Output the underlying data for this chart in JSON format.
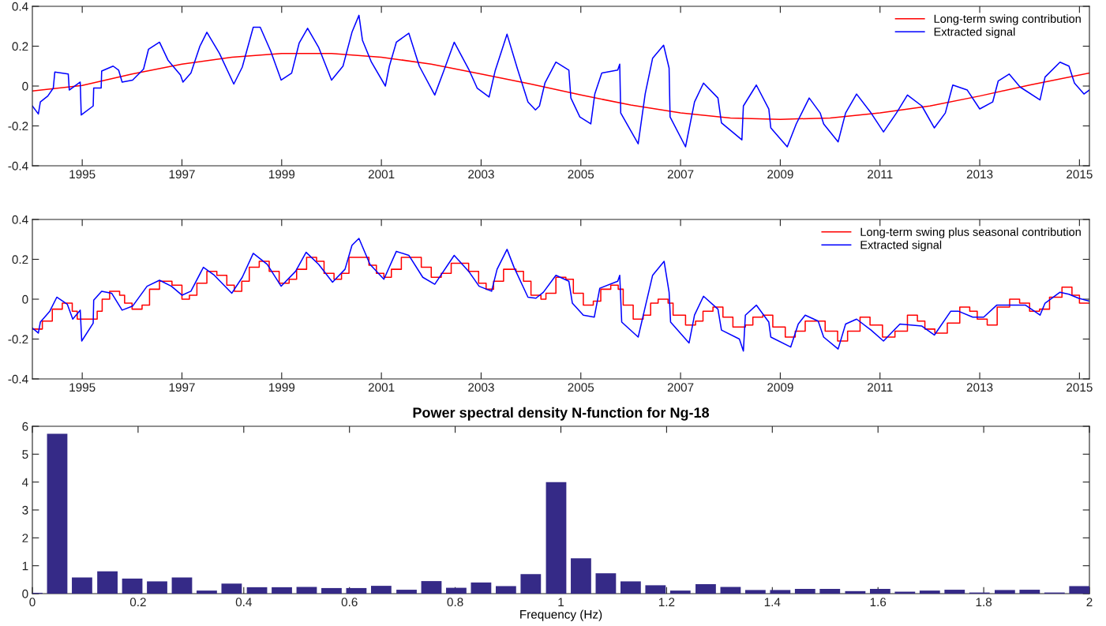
{
  "chart_data": [
    {
      "type": "line",
      "legend": "top right",
      "xlim": [
        1994.0,
        2015.2
      ],
      "ylim": [
        -0.4,
        0.4
      ],
      "xticks": [
        1995,
        1997,
        1999,
        2001,
        2003,
        2005,
        2007,
        2009,
        2011,
        2013,
        2015
      ],
      "yticks": [
        -0.4,
        -0.2,
        0,
        0.2,
        0.4
      ],
      "series": [
        {
          "name": "Long-term swing contribution",
          "color": "#ff0000",
          "x": [
            1994.0,
            1995.0,
            1996.0,
            1997.0,
            1998.0,
            1999.0,
            2000.0,
            2001.0,
            2002.0,
            2003.0,
            2004.0,
            2005.0,
            2006.0,
            2007.0,
            2008.0,
            2009.0,
            2010.0,
            2011.0,
            2012.0,
            2013.0,
            2014.0,
            2015.2
          ],
          "values": [
            -0.025,
            0.003,
            0.06,
            0.11,
            0.145,
            0.163,
            0.163,
            0.145,
            0.11,
            0.06,
            0.01,
            -0.045,
            -0.095,
            -0.135,
            -0.16,
            -0.167,
            -0.16,
            -0.135,
            -0.1,
            -0.05,
            0.005,
            0.065
          ]
        },
        {
          "name": "Extracted signal",
          "color": "#0000ff",
          "x": [
            1994.0,
            1994.12,
            1994.16,
            1994.31,
            1994.42,
            1994.45,
            1994.72,
            1994.74,
            1994.96,
            1994.98,
            1995.22,
            1995.23,
            1995.38,
            1995.39,
            1995.62,
            1995.73,
            1995.8,
            1996.01,
            1996.23,
            1996.33,
            1996.55,
            1996.72,
            1996.97,
            1997.02,
            1997.18,
            1997.36,
            1997.5,
            1997.75,
            1998.04,
            1998.21,
            1998.43,
            1998.57,
            1998.78,
            1998.99,
            1999.2,
            1999.35,
            1999.52,
            1999.74,
            2000.0,
            2000.23,
            2000.41,
            2000.55,
            2000.62,
            2000.8,
            2001.08,
            2001.16,
            2001.3,
            2001.55,
            2001.76,
            2002.07,
            2002.25,
            2002.46,
            2002.75,
            2002.92,
            2003.16,
            2003.28,
            2003.52,
            2003.73,
            2003.94,
            2004.09,
            2004.17,
            2004.28,
            2004.5,
            2004.76,
            2004.8,
            2004.98,
            2005.2,
            2005.28,
            2005.42,
            2005.74,
            2005.78,
            2005.8,
            2006.15,
            2006.29,
            2006.44,
            2006.66,
            2006.77,
            2006.79,
            2007.1,
            2007.28,
            2007.46,
            2007.75,
            2007.82,
            2008.23,
            2008.26,
            2008.52,
            2008.77,
            2008.81,
            2009.14,
            2009.32,
            2009.58,
            2009.8,
            2009.87,
            2010.16,
            2010.31,
            2010.53,
            2010.82,
            2011.07,
            2011.33,
            2011.55,
            2011.84,
            2012.09,
            2012.31,
            2012.46,
            2012.75,
            2013.0,
            2013.26,
            2013.37,
            2013.59,
            2013.81,
            2014.21,
            2014.31,
            2014.61,
            2014.79,
            2014.9,
            2015.09,
            2015.2
          ],
          "values": [
            -0.1,
            -0.14,
            -0.08,
            -0.05,
            -0.01,
            0.07,
            0.06,
            -0.02,
            0.02,
            -0.145,
            -0.1,
            -0.01,
            -0.01,
            0.075,
            0.1,
            0.08,
            0.02,
            0.03,
            0.085,
            0.185,
            0.22,
            0.13,
            0.055,
            0.02,
            0.065,
            0.2,
            0.27,
            0.165,
            0.01,
            0.095,
            0.295,
            0.295,
            0.175,
            0.03,
            0.065,
            0.215,
            0.29,
            0.195,
            0.03,
            0.1,
            0.27,
            0.355,
            0.23,
            0.12,
            0.0,
            0.1,
            0.22,
            0.265,
            0.1,
            -0.045,
            0.075,
            0.22,
            0.085,
            -0.01,
            -0.055,
            0.075,
            0.26,
            0.085,
            -0.08,
            -0.12,
            -0.1,
            0.015,
            0.12,
            0.08,
            -0.06,
            -0.155,
            -0.19,
            -0.04,
            0.065,
            0.08,
            0.11,
            -0.135,
            -0.29,
            -0.04,
            0.14,
            0.205,
            0.09,
            -0.155,
            -0.305,
            -0.08,
            0.015,
            -0.06,
            -0.185,
            -0.27,
            -0.1,
            0.005,
            -0.115,
            -0.21,
            -0.305,
            -0.19,
            -0.06,
            -0.135,
            -0.19,
            -0.28,
            -0.135,
            -0.04,
            -0.135,
            -0.23,
            -0.135,
            -0.045,
            -0.1,
            -0.21,
            -0.135,
            0.005,
            -0.02,
            -0.115,
            -0.08,
            0.025,
            0.06,
            -0.005,
            -0.07,
            0.045,
            0.12,
            0.1,
            0.015,
            -0.04,
            -0.02
          ]
        }
      ]
    },
    {
      "type": "line",
      "legend": "top right",
      "xlim": [
        1994.0,
        2015.2
      ],
      "ylim": [
        -0.4,
        0.4
      ],
      "xticks": [
        1995,
        1997,
        1999,
        2001,
        2003,
        2005,
        2007,
        2009,
        2011,
        2013,
        2015
      ],
      "yticks": [
        -0.4,
        -0.2,
        0,
        0.2,
        0.4
      ],
      "series": [
        {
          "name": "Long-term swing plus seasonal contribution",
          "type": "step",
          "color": "#ff0000",
          "x": [
            1994.0,
            1994.2,
            1994.4,
            1994.6,
            1994.8,
            1994.9,
            1995.1,
            1995.3,
            1995.4,
            1995.55,
            1995.75,
            1995.85,
            1996.0,
            1996.2,
            1996.35,
            1996.55,
            1996.8,
            1997.0,
            1997.15,
            1997.3,
            1997.5,
            1997.7,
            1997.9,
            1998.05,
            1998.2,
            1998.35,
            1998.55,
            1998.75,
            1998.95,
            1999.15,
            1999.3,
            1999.5,
            1999.7,
            1999.85,
            2000.05,
            2000.2,
            2000.35,
            2000.55,
            2000.75,
            2000.9,
            2001.05,
            2001.2,
            2001.4,
            2001.6,
            2001.8,
            2002.0,
            2002.2,
            2002.4,
            2002.55,
            2002.75,
            2002.95,
            2003.1,
            2003.25,
            2003.45,
            2003.7,
            2003.85,
            2004.0,
            2004.2,
            2004.3,
            2004.5,
            2004.7,
            2004.85,
            2005.05,
            2005.25,
            2005.4,
            2005.6,
            2005.75,
            2005.85,
            2006.05,
            2006.25,
            2006.4,
            2006.55,
            2006.75,
            2006.85,
            2007.1,
            2007.3,
            2007.45,
            2007.65,
            2007.85,
            2008.05,
            2008.3,
            2008.45,
            2008.65,
            2008.85,
            2009.1,
            2009.3,
            2009.5,
            2009.7,
            2009.9,
            2010.15,
            2010.35,
            2010.6,
            2010.8,
            2011.05,
            2011.3,
            2011.55,
            2011.75,
            2011.9,
            2012.1,
            2012.35,
            2012.6,
            2012.8,
            2012.95,
            2013.15,
            2013.35,
            2013.6,
            2013.8,
            2014.0,
            2014.2,
            2014.4,
            2014.65,
            2014.85,
            2015.0,
            2015.2
          ],
          "values": [
            -0.15,
            -0.11,
            -0.05,
            -0.02,
            -0.06,
            -0.1,
            -0.1,
            -0.06,
            0.0,
            0.04,
            0.02,
            -0.02,
            -0.05,
            -0.03,
            0.05,
            0.09,
            0.07,
            0.0,
            0.02,
            0.08,
            0.14,
            0.12,
            0.07,
            0.04,
            0.09,
            0.16,
            0.19,
            0.14,
            0.08,
            0.1,
            0.15,
            0.21,
            0.19,
            0.13,
            0.1,
            0.13,
            0.21,
            0.21,
            0.17,
            0.13,
            0.11,
            0.15,
            0.21,
            0.21,
            0.16,
            0.11,
            0.13,
            0.18,
            0.18,
            0.14,
            0.08,
            0.05,
            0.09,
            0.15,
            0.14,
            0.09,
            0.02,
            0.0,
            0.03,
            0.11,
            0.1,
            0.03,
            -0.03,
            -0.01,
            0.05,
            0.07,
            0.05,
            -0.03,
            -0.1,
            -0.08,
            -0.02,
            0.0,
            -0.02,
            -0.08,
            -0.13,
            -0.11,
            -0.06,
            -0.04,
            -0.09,
            -0.14,
            -0.13,
            -0.09,
            -0.08,
            -0.14,
            -0.19,
            -0.16,
            -0.11,
            -0.11,
            -0.16,
            -0.21,
            -0.16,
            -0.09,
            -0.13,
            -0.19,
            -0.16,
            -0.08,
            -0.11,
            -0.15,
            -0.17,
            -0.12,
            -0.04,
            -0.06,
            -0.1,
            -0.13,
            -0.04,
            0.0,
            -0.02,
            -0.06,
            -0.05,
            0.01,
            0.06,
            0.02,
            -0.02,
            -0.02
          ]
        },
        {
          "name": "Extracted signal",
          "color": "#0000ff",
          "x": [
            1994.0,
            1994.12,
            1994.16,
            1994.35,
            1994.49,
            1994.7,
            1994.81,
            1994.96,
            1994.99,
            1995.22,
            1995.23,
            1995.39,
            1995.59,
            1995.8,
            1996.01,
            1996.3,
            1996.55,
            1996.79,
            1997.0,
            1997.18,
            1997.43,
            1997.65,
            1998.0,
            1998.21,
            1998.43,
            1998.71,
            1998.99,
            1999.28,
            1999.49,
            1999.74,
            2000.02,
            2000.27,
            2000.41,
            2000.55,
            2000.77,
            2001.05,
            2001.3,
            2001.55,
            2001.83,
            2002.07,
            2002.46,
            2002.75,
            2002.96,
            2003.21,
            2003.32,
            2003.52,
            2003.66,
            2003.94,
            2004.1,
            2004.25,
            2004.5,
            2004.76,
            2004.83,
            2005.05,
            2005.27,
            2005.38,
            2005.74,
            2005.78,
            2005.82,
            2006.15,
            2006.29,
            2006.44,
            2006.67,
            2006.77,
            2006.8,
            2007.17,
            2007.28,
            2007.46,
            2007.75,
            2007.82,
            2008.18,
            2008.26,
            2008.3,
            2008.52,
            2008.77,
            2008.81,
            2009.21,
            2009.36,
            2009.5,
            2009.76,
            2009.87,
            2010.16,
            2010.31,
            2010.53,
            2010.82,
            2011.07,
            2011.4,
            2011.84,
            2012.09,
            2012.42,
            2012.57,
            2012.86,
            2013.08,
            2013.34,
            2013.67,
            2013.92,
            2014.21,
            2014.31,
            2014.61,
            2014.79,
            2014.98,
            2015.2
          ],
          "values": [
            -0.145,
            -0.17,
            -0.115,
            -0.06,
            0.01,
            -0.025,
            -0.1,
            -0.055,
            -0.21,
            -0.12,
            -0.005,
            0.04,
            0.03,
            -0.055,
            -0.035,
            0.065,
            0.095,
            0.065,
            0.02,
            0.04,
            0.16,
            0.12,
            0.03,
            0.11,
            0.23,
            0.175,
            0.065,
            0.14,
            0.235,
            0.175,
            0.085,
            0.15,
            0.27,
            0.305,
            0.175,
            0.1,
            0.24,
            0.22,
            0.11,
            0.075,
            0.22,
            0.14,
            0.065,
            0.04,
            0.15,
            0.25,
            0.16,
            0.01,
            0.005,
            0.035,
            0.12,
            0.09,
            -0.02,
            -0.08,
            -0.09,
            0.055,
            0.09,
            0.12,
            -0.115,
            -0.19,
            -0.04,
            0.12,
            0.19,
            0.035,
            -0.115,
            -0.22,
            -0.08,
            0.015,
            -0.05,
            -0.155,
            -0.2,
            -0.26,
            -0.08,
            -0.03,
            -0.115,
            -0.19,
            -0.24,
            -0.125,
            -0.08,
            -0.11,
            -0.19,
            -0.25,
            -0.125,
            -0.1,
            -0.155,
            -0.21,
            -0.125,
            -0.135,
            -0.18,
            -0.06,
            -0.06,
            -0.09,
            -0.09,
            -0.03,
            -0.03,
            -0.03,
            -0.08,
            -0.02,
            0.035,
            0.025,
            0.005,
            -0.01
          ]
        }
      ]
    },
    {
      "type": "bar",
      "title": "Power spectral density N-function for Ng-18",
      "xlabel": "Frequency (Hz)",
      "color": "#352a87",
      "xlim": [
        0,
        2
      ],
      "ylim": [
        0,
        6
      ],
      "xticks": [
        0,
        0.2,
        0.4,
        0.6,
        0.8,
        1,
        1.2,
        1.4,
        1.6,
        1.8,
        2
      ],
      "yticks": [
        0,
        1,
        2,
        3,
        4,
        5,
        6
      ],
      "x": [
        0,
        0.047,
        0.094,
        0.142,
        0.189,
        0.236,
        0.283,
        0.33,
        0.377,
        0.425,
        0.472,
        0.519,
        0.566,
        0.613,
        0.66,
        0.708,
        0.755,
        0.802,
        0.849,
        0.896,
        0.943,
        0.991,
        1.038,
        1.085,
        1.132,
        1.179,
        1.226,
        1.274,
        1.321,
        1.368,
        1.415,
        1.462,
        1.509,
        1.557,
        1.604,
        1.651,
        1.698,
        1.745,
        1.792,
        1.84,
        1.887,
        1.934,
        1.981
      ],
      "values": [
        0.03,
        5.73,
        0.58,
        0.8,
        0.54,
        0.44,
        0.58,
        0.11,
        0.36,
        0.23,
        0.23,
        0.24,
        0.2,
        0.2,
        0.28,
        0.14,
        0.45,
        0.21,
        0.4,
        0.27,
        0.7,
        4.0,
        1.27,
        0.73,
        0.44,
        0.3,
        0.11,
        0.34,
        0.24,
        0.13,
        0.13,
        0.17,
        0.17,
        0.09,
        0.17,
        0.07,
        0.11,
        0.14,
        0.04,
        0.13,
        0.14,
        0.04,
        0.27
      ]
    }
  ]
}
